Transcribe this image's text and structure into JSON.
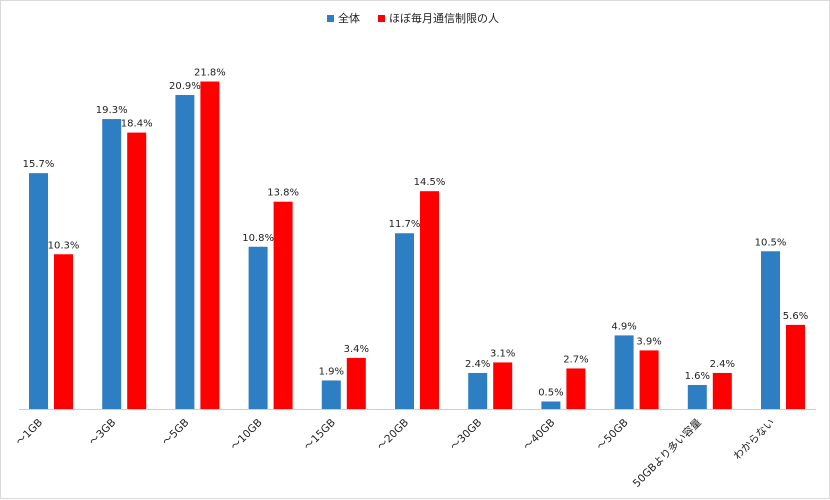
{
  "chart_data": {
    "type": "bar",
    "categories": [
      "～1GB",
      "～3GB",
      "～5GB",
      "～10GB",
      "～15GB",
      "～20GB",
      "～30GB",
      "～40GB",
      "～50GB",
      "50GBより多い容量",
      "わからない"
    ],
    "series": [
      {
        "name": "全体",
        "color": "#2e7ec4",
        "values": [
          15.7,
          19.3,
          20.9,
          10.8,
          1.9,
          11.7,
          2.4,
          0.5,
          4.9,
          1.6,
          10.5
        ]
      },
      {
        "name": "ほぼ毎月通信制限の人",
        "color": "#ff0000",
        "values": [
          10.3,
          18.4,
          21.8,
          13.8,
          3.4,
          14.5,
          3.1,
          2.7,
          3.9,
          2.4,
          5.6
        ]
      }
    ],
    "value_labels": [
      [
        "15.7%",
        "19.3%",
        "20.9%",
        "10.8%",
        "1.9%",
        "11.7%",
        "2.4%",
        "0.5%",
        "4.9%",
        "1.6%",
        "10.5%"
      ],
      [
        "10.3%",
        "18.4%",
        "21.8%",
        "13.8%",
        "3.4%",
        "14.5%",
        "3.1%",
        "2.7%",
        "3.9%",
        "2.4%",
        "5.6%"
      ]
    ],
    "ylim": [
      0,
      22.5
    ],
    "grid": false,
    "legend_position": "top-center"
  }
}
